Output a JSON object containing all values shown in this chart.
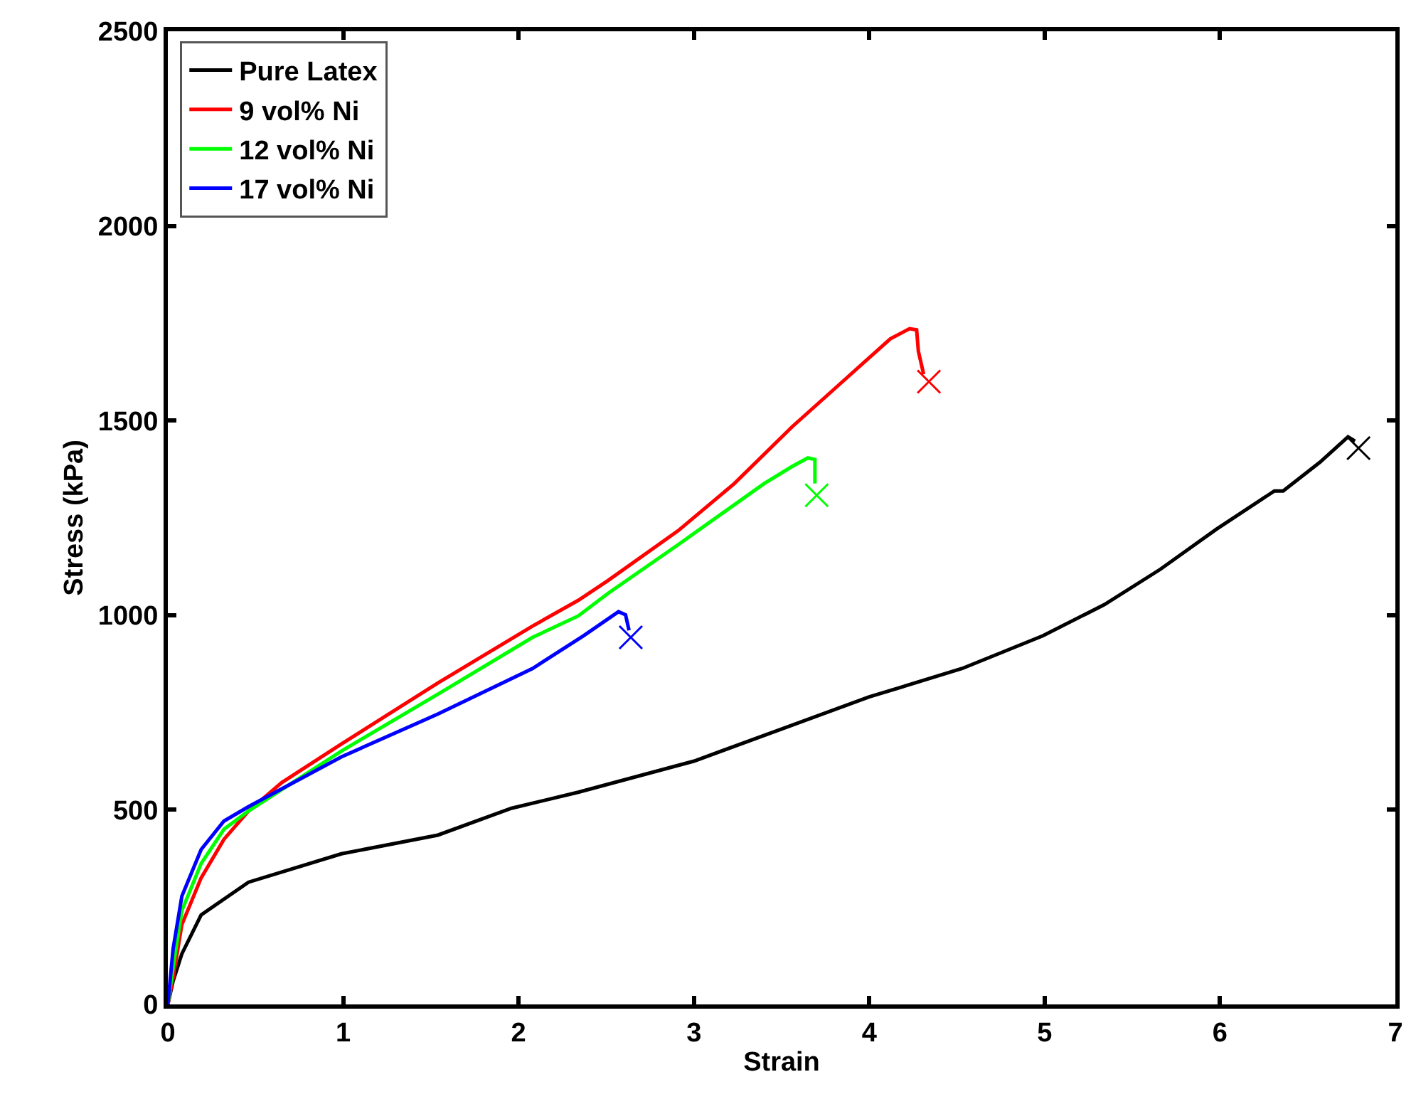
{
  "chart_data": {
    "type": "line",
    "xlabel": "Strain",
    "ylabel": "Stress (kPa)",
    "xlim": [
      0,
      7
    ],
    "xticks": [
      0,
      1,
      2,
      3,
      4,
      5,
      6,
      7
    ],
    "ylim": [
      0,
      2500
    ],
    "yticks": [
      0,
      500,
      1000,
      1500,
      2000,
      2500
    ],
    "legend": "top left",
    "marker": "none",
    "line_style": "solid",
    "series": [
      {
        "name": "Pure Latex",
        "color": "#000000",
        "x": [
          0,
          0.03,
          0.08,
          0.19,
          0.46,
          0.99,
          1.54,
          1.96,
          2.34,
          3.0,
          4.0,
          4.53,
          4.99,
          5.34,
          5.66,
          5.98,
          6.31,
          6.36,
          6.57,
          6.73,
          6.77
        ],
        "values": [
          0,
          60,
          130,
          230,
          314,
          387,
          435,
          504,
          545,
          625,
          790,
          863,
          947,
          1027,
          1118,
          1221,
          1319,
          1319,
          1393,
          1458,
          1447
        ]
      },
      {
        "name": "9 vol% Ni",
        "color": "#ff0000",
        "x": [
          0,
          0.03,
          0.08,
          0.19,
          0.32,
          0.46,
          0.65,
          0.99,
          1.54,
          2.08,
          2.34,
          2.51,
          2.91,
          3.23,
          3.56,
          3.86,
          4.12,
          4.23,
          4.27,
          4.28,
          4.31
        ],
        "values": [
          0,
          69,
          205,
          325,
          424,
          497,
          570,
          669,
          826,
          972,
          1038,
          1089,
          1217,
          1338,
          1484,
          1605,
          1710,
          1736,
          1733,
          1678,
          1619
        ]
      },
      {
        "name": "12 vol% Ni",
        "color": "#00ff00",
        "x": [
          0,
          0.03,
          0.08,
          0.19,
          0.32,
          0.46,
          0.99,
          1.54,
          2.08,
          2.34,
          2.51,
          2.91,
          3.4,
          3.56,
          3.65,
          3.69,
          3.69
        ],
        "values": [
          0,
          95,
          241,
          362,
          450,
          497,
          651,
          797,
          943,
          998,
          1056,
          1181,
          1338,
          1382,
          1404,
          1400,
          1338
        ]
      },
      {
        "name": "17 vol% Ni",
        "color": "#0000ff",
        "x": [
          0,
          0.03,
          0.08,
          0.19,
          0.32,
          0.46,
          0.99,
          1.54,
          2.08,
          2.37,
          2.57,
          2.61,
          2.63
        ],
        "values": [
          0,
          143,
          278,
          398,
          471,
          508,
          636,
          746,
          863,
          947,
          1009,
          1001,
          961
        ]
      },
      {
        "type": "scatter",
        "marker": "cross",
        "color": "#000000",
        "x": [
          6.79
        ],
        "values": [
          1429
        ]
      },
      {
        "type": "scatter",
        "marker": "cross",
        "color": "#ff0000",
        "x": [
          4.34
        ],
        "values": [
          1600
        ]
      },
      {
        "type": "scatter",
        "marker": "cross",
        "color": "#00ff00",
        "x": [
          3.7
        ],
        "values": [
          1308
        ]
      },
      {
        "type": "scatter",
        "marker": "cross",
        "color": "#0000ff",
        "x": [
          2.64
        ],
        "values": [
          943
        ]
      }
    ]
  }
}
